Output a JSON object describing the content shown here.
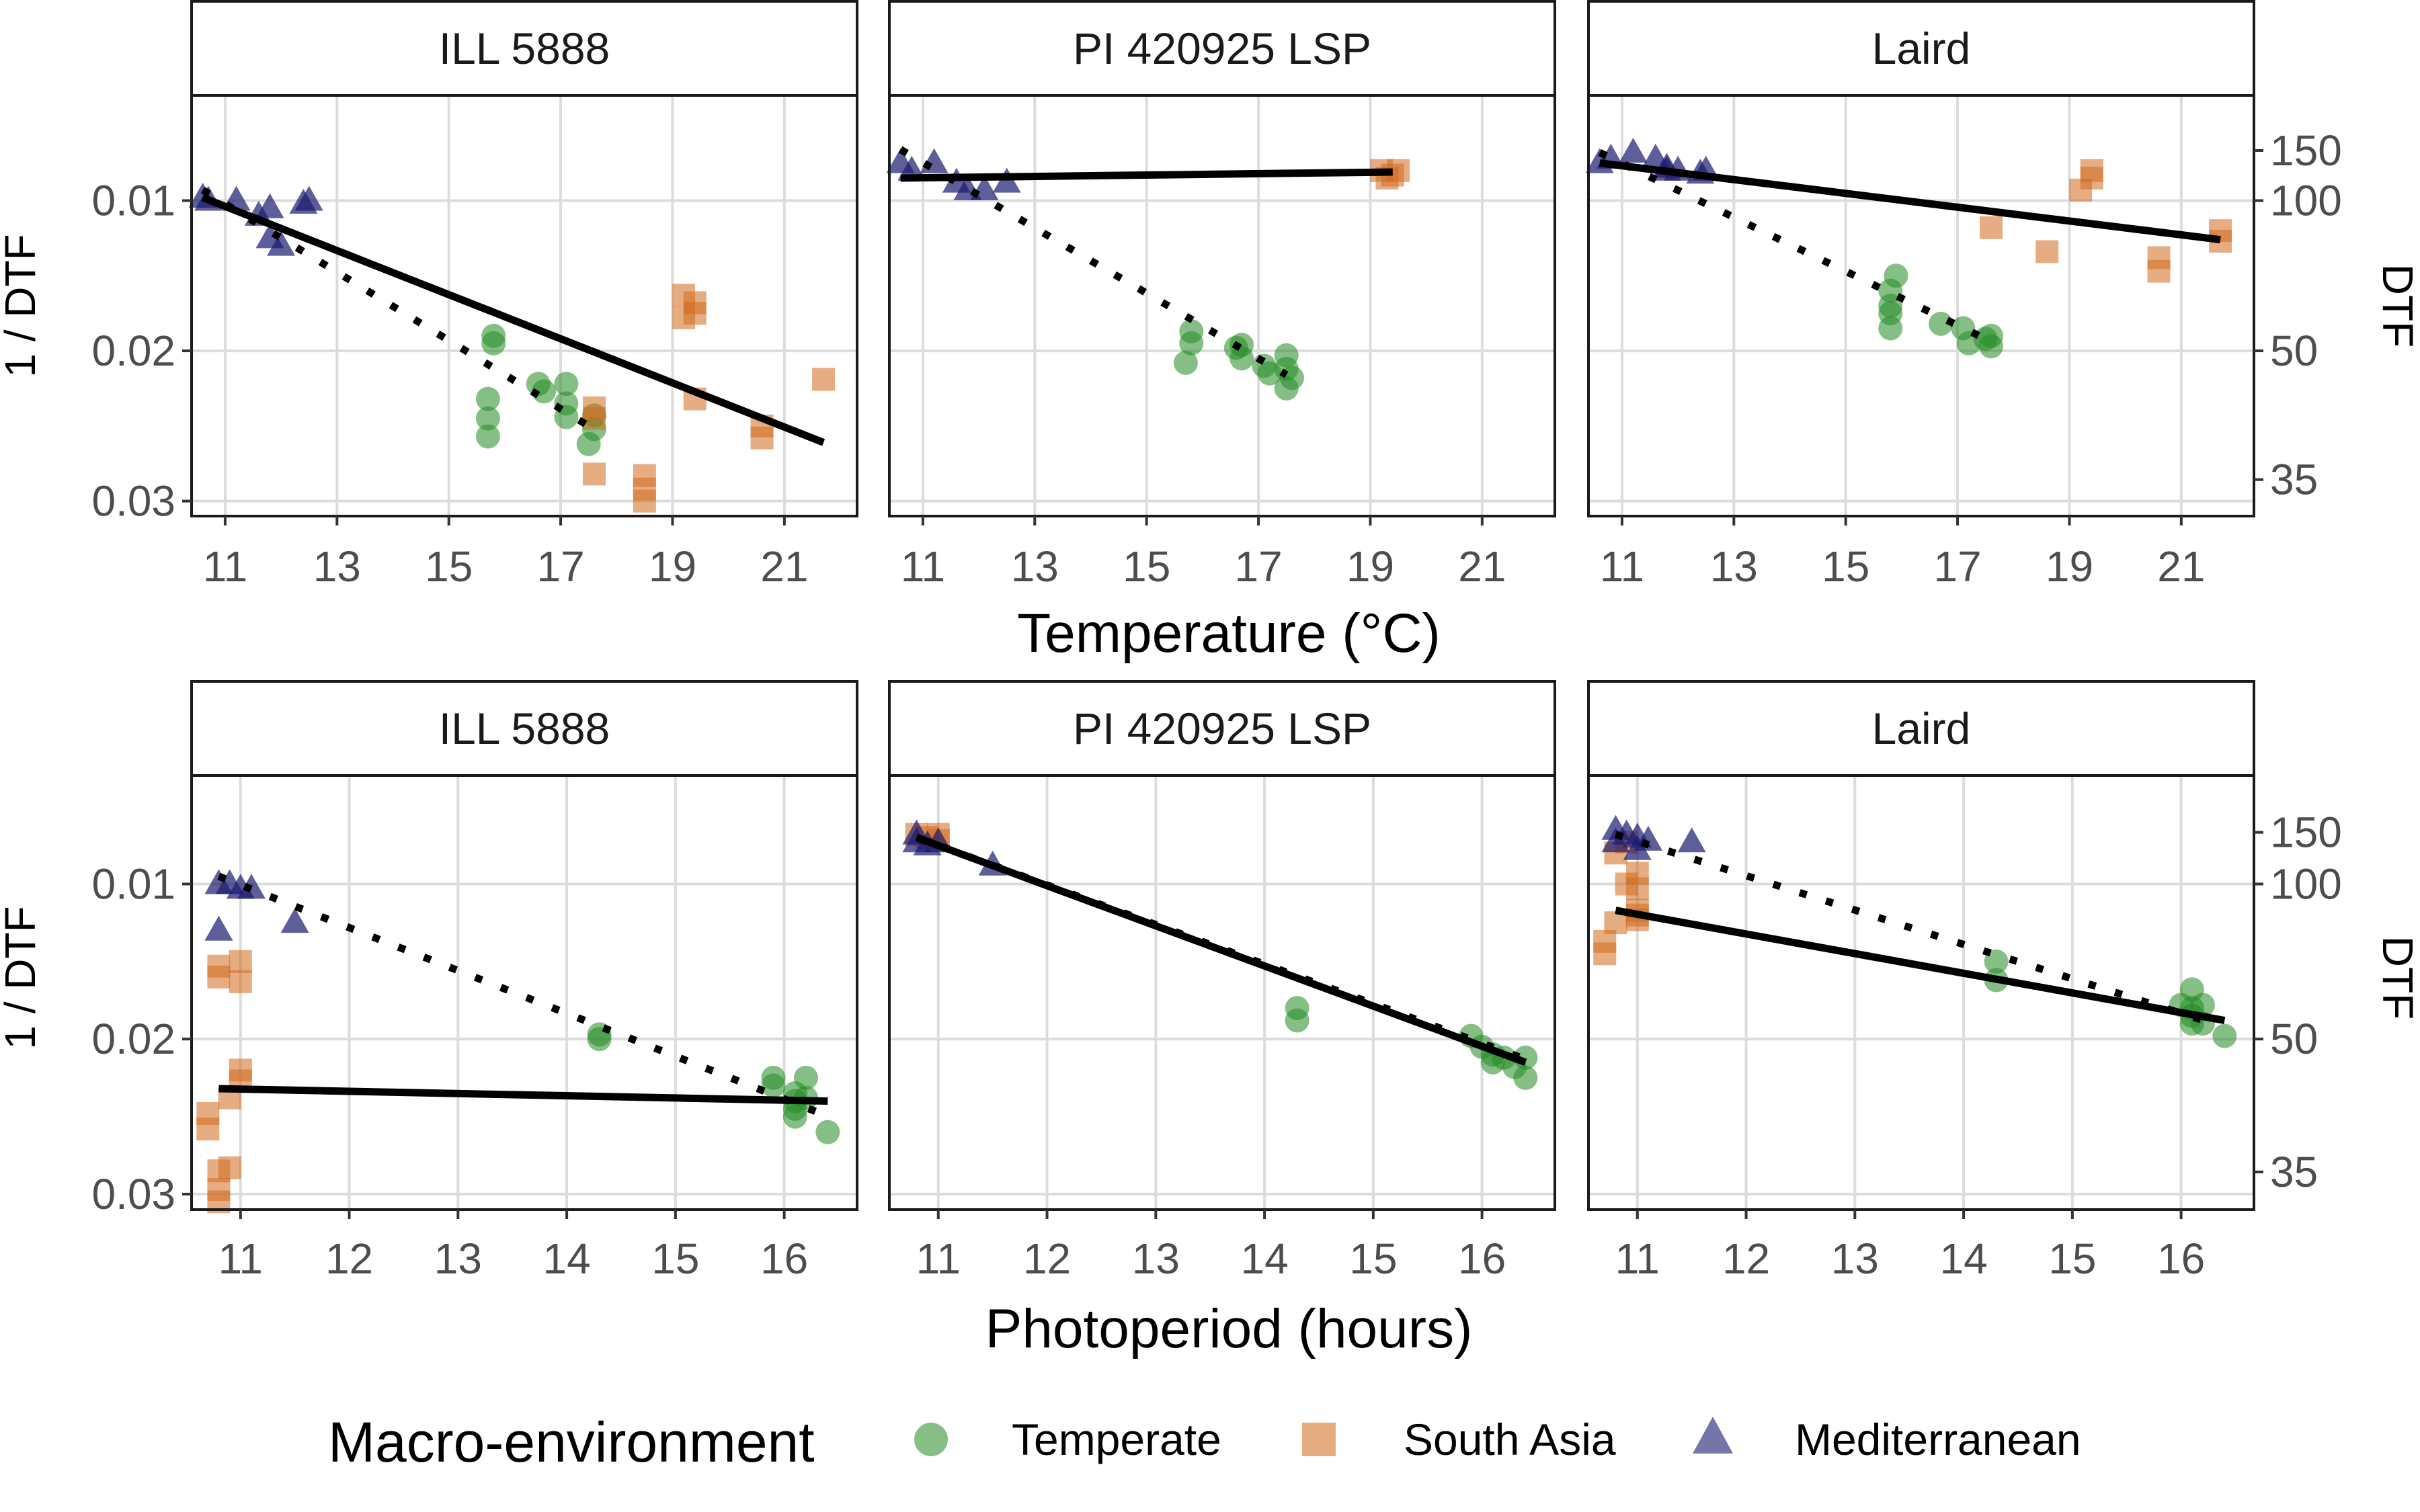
{
  "legend": {
    "title": "Macro-environment",
    "items": [
      {
        "label": "Temperate",
        "shape": "circle",
        "color": "#228B22"
      },
      {
        "label": "South Asia",
        "shape": "square",
        "color": "#D2691E"
      },
      {
        "label": "Mediterranean",
        "shape": "triangle",
        "color": "#191970"
      }
    ]
  },
  "axes": {
    "row1_xlabel": "Temperature (°C)",
    "row2_xlabel": "Photoperiod (hours)",
    "ylabel_left": "1 / DTF",
    "ylabel_right": "DTF"
  },
  "chart_data": [
    {
      "type": "scatter",
      "panel": "ILL 5888",
      "row_variable": "Temperature",
      "x_ticks": [
        11,
        13,
        15,
        17,
        19,
        21
      ],
      "xlim": [
        10.4,
        22.3
      ],
      "y_scale": "reversed reciprocal",
      "y_ticks_left": [
        0.01,
        0.02,
        0.03
      ],
      "y_ticks_right": [
        150,
        100,
        50,
        35
      ],
      "ylim": [
        0.003,
        0.031
      ],
      "series": [
        {
          "name": "Temperate",
          "points": [
            [
              15.8,
              0.0195
            ],
            [
              15.8,
              0.019
            ],
            [
              15.7,
              0.0232
            ],
            [
              15.7,
              0.0245
            ],
            [
              15.7,
              0.0257
            ],
            [
              16.6,
              0.0222
            ],
            [
              16.7,
              0.0227
            ],
            [
              17.1,
              0.0222
            ],
            [
              17.1,
              0.0235
            ],
            [
              17.1,
              0.0244
            ],
            [
              17.6,
              0.0243
            ],
            [
              17.6,
              0.0252
            ],
            [
              17.5,
              0.0262
            ]
          ]
        },
        {
          "name": "South Asia",
          "points": [
            [
              17.6,
              0.0238
            ],
            [
              17.6,
              0.0245
            ],
            [
              17.6,
              0.0282
            ],
            [
              18.5,
              0.0283
            ],
            [
              18.5,
              0.0292
            ],
            [
              18.5,
              0.03
            ],
            [
              19.2,
              0.0163
            ],
            [
              19.2,
              0.0178
            ],
            [
              19.4,
              0.0168
            ],
            [
              19.4,
              0.0175
            ],
            [
              19.4,
              0.0232
            ],
            [
              20.6,
              0.025
            ],
            [
              20.6,
              0.0258
            ],
            [
              21.7,
              0.0219
            ]
          ]
        },
        {
          "name": "Mediterranean",
          "points": [
            [
              10.6,
              0.0098
            ],
            [
              10.7,
              0.01
            ],
            [
              11.2,
              0.01
            ],
            [
              11.6,
              0.011
            ],
            [
              11.8,
              0.0105
            ],
            [
              11.8,
              0.0125
            ],
            [
              12.0,
              0.013
            ],
            [
              12.4,
              0.0102
            ],
            [
              12.5,
              0.01
            ]
          ]
        }
      ],
      "fits": [
        {
          "style": "solid",
          "x": [
            10.6,
            21.7
          ],
          "y": [
            0.0098,
            0.0261
          ]
        },
        {
          "style": "dotted",
          "x": [
            10.6,
            17.5
          ],
          "y": [
            0.0093,
            0.025
          ]
        }
      ]
    },
    {
      "type": "scatter",
      "panel": "PI 420925 LSP",
      "row_variable": "Temperature",
      "x_ticks": [
        11,
        13,
        15,
        17,
        19,
        21
      ],
      "xlim": [
        10.4,
        22.3
      ],
      "y_scale": "reversed reciprocal",
      "y_ticks_left": [
        0.01,
        0.02,
        0.03
      ],
      "y_ticks_right": [
        150,
        100,
        50,
        35
      ],
      "ylim": [
        0.003,
        0.031
      ],
      "series": [
        {
          "name": "Temperate",
          "points": [
            [
              15.7,
              0.0208
            ],
            [
              15.8,
              0.0195
            ],
            [
              15.8,
              0.0187
            ],
            [
              16.6,
              0.0198
            ],
            [
              16.7,
              0.0205
            ],
            [
              16.7,
              0.0196
            ],
            [
              17.1,
              0.021
            ],
            [
              17.2,
              0.0215
            ],
            [
              17.5,
              0.0203
            ],
            [
              17.5,
              0.0212
            ],
            [
              17.5,
              0.0225
            ],
            [
              17.6,
              0.0218
            ]
          ]
        },
        {
          "name": "South Asia",
          "points": [
            [
              19.2,
              0.008
            ],
            [
              19.3,
              0.0085
            ],
            [
              19.5,
              0.008
            ],
            [
              19.4,
              0.0083
            ]
          ]
        },
        {
          "name": "Mediterranean",
          "points": [
            [
              10.6,
              0.0075
            ],
            [
              10.8,
              0.008
            ],
            [
              11.2,
              0.0075
            ],
            [
              11.6,
              0.0088
            ],
            [
              11.8,
              0.0093
            ],
            [
              12.1,
              0.0093
            ],
            [
              12.5,
              0.0088
            ]
          ]
        }
      ],
      "fits": [
        {
          "style": "solid",
          "x": [
            10.6,
            19.4
          ],
          "y": [
            0.0085,
            0.0081
          ]
        },
        {
          "style": "dotted",
          "x": [
            10.6,
            17.5
          ],
          "y": [
            0.0066,
            0.0216
          ]
        }
      ]
    },
    {
      "type": "scatter",
      "panel": "Laird",
      "row_variable": "Temperature",
      "x_ticks": [
        11,
        13,
        15,
        17,
        19,
        21
      ],
      "xlim": [
        10.4,
        22.3
      ],
      "y_scale": "reversed reciprocal",
      "y_ticks_left": [
        0.01,
        0.02,
        0.03
      ],
      "y_ticks_right": [
        150,
        100,
        50,
        35
      ],
      "ylim": [
        0.003,
        0.031
      ],
      "series": [
        {
          "name": "Temperate",
          "points": [
            [
              15.8,
              0.016
            ],
            [
              15.8,
              0.017
            ],
            [
              15.8,
              0.0175
            ],
            [
              15.8,
              0.0185
            ],
            [
              15.9,
              0.015
            ],
            [
              16.7,
              0.0182
            ],
            [
              17.1,
              0.0185
            ],
            [
              17.2,
              0.0195
            ],
            [
              17.5,
              0.0192
            ],
            [
              17.6,
              0.0197
            ],
            [
              17.6,
              0.019
            ]
          ]
        },
        {
          "name": "South Asia",
          "points": [
            [
              17.6,
              0.0118
            ],
            [
              18.6,
              0.0134
            ],
            [
              19.2,
              0.0093
            ],
            [
              19.4,
              0.0085
            ],
            [
              19.4,
              0.008
            ],
            [
              20.6,
              0.0138
            ],
            [
              20.6,
              0.0147
            ],
            [
              21.7,
              0.012
            ],
            [
              21.7,
              0.0127
            ]
          ]
        },
        {
          "name": "Mediterranean",
          "points": [
            [
              10.6,
              0.0075
            ],
            [
              10.8,
              0.0072
            ],
            [
              11.2,
              0.0068
            ],
            [
              11.6,
              0.0072
            ],
            [
              11.8,
              0.0078
            ],
            [
              11.8,
              0.008
            ],
            [
              12.0,
              0.008
            ],
            [
              12.4,
              0.0082
            ],
            [
              12.5,
              0.008
            ]
          ]
        }
      ],
      "fits": [
        {
          "style": "solid",
          "x": [
            10.6,
            21.7
          ],
          "y": [
            0.0075,
            0.0126
          ]
        },
        {
          "style": "dotted",
          "x": [
            10.6,
            17.5
          ],
          "y": [
            0.0068,
            0.0192
          ]
        }
      ]
    },
    {
      "type": "scatter",
      "panel": "ILL 5888",
      "row_variable": "Photoperiod",
      "x_ticks": [
        11,
        12,
        13,
        14,
        15,
        16
      ],
      "xlim": [
        10.55,
        16.67
      ],
      "y_scale": "reversed reciprocal",
      "y_ticks_left": [
        0.01,
        0.02,
        0.03
      ],
      "y_ticks_right": [
        150,
        100,
        50,
        35
      ],
      "ylim": [
        0.003,
        0.031
      ],
      "series": [
        {
          "name": "Temperate",
          "points": [
            [
              14.3,
              0.02
            ],
            [
              14.3,
              0.0197
            ],
            [
              15.9,
              0.0225
            ],
            [
              15.9,
              0.023
            ],
            [
              16.1,
              0.0235
            ],
            [
              16.1,
              0.024
            ],
            [
              16.1,
              0.0245
            ],
            [
              16.1,
              0.025
            ],
            [
              16.2,
              0.0225
            ],
            [
              16.2,
              0.0238
            ],
            [
              16.4,
              0.026
            ]
          ]
        },
        {
          "name": "South Asia",
          "points": [
            [
              10.7,
              0.0248
            ],
            [
              10.7,
              0.0258
            ],
            [
              10.8,
              0.0285
            ],
            [
              10.8,
              0.0297
            ],
            [
              10.8,
              0.0305
            ],
            [
              10.8,
              0.0153
            ],
            [
              10.8,
              0.016
            ],
            [
              10.9,
              0.0283
            ],
            [
              10.9,
              0.0238
            ],
            [
              11.0,
              0.015
            ],
            [
              11.0,
              0.0163
            ],
            [
              11.0,
              0.022
            ],
            [
              11.0,
              0.0227
            ]
          ]
        },
        {
          "name": "Mediterranean",
          "points": [
            [
              10.8,
              0.01
            ],
            [
              10.8,
              0.013
            ],
            [
              10.9,
              0.01
            ],
            [
              11.0,
              0.0103
            ],
            [
              11.1,
              0.0103
            ],
            [
              11.5,
              0.0125
            ]
          ]
        }
      ],
      "fits": [
        {
          "style": "solid",
          "x": [
            10.8,
            16.4
          ],
          "y": [
            0.0232,
            0.024
          ]
        },
        {
          "style": "dotted",
          "x": [
            10.8,
            16.3
          ],
          "y": [
            0.0095,
            0.0247
          ]
        }
      ]
    },
    {
      "type": "scatter",
      "panel": "PI 420925 LSP",
      "row_variable": "Photoperiod",
      "x_ticks": [
        11,
        12,
        13,
        14,
        15,
        16
      ],
      "xlim": [
        10.55,
        16.67
      ],
      "y_scale": "reversed reciprocal",
      "y_ticks_left": [
        0.01,
        0.02,
        0.03
      ],
      "y_ticks_right": [
        150,
        100,
        50,
        35
      ],
      "ylim": [
        0.003,
        0.031
      ],
      "series": [
        {
          "name": "Temperate",
          "points": [
            [
              14.3,
              0.018
            ],
            [
              14.3,
              0.0188
            ],
            [
              15.9,
              0.0198
            ],
            [
              16.0,
              0.0205
            ],
            [
              16.1,
              0.021
            ],
            [
              16.1,
              0.0215
            ],
            [
              16.2,
              0.0212
            ],
            [
              16.3,
              0.0218
            ],
            [
              16.4,
              0.0212
            ],
            [
              16.4,
              0.0225
            ]
          ]
        },
        {
          "name": "South Asia",
          "points": [
            [
              10.8,
              0.0068
            ],
            [
              10.9,
              0.007
            ],
            [
              11.0,
              0.0068
            ],
            [
              11.0,
              0.0072
            ]
          ]
        },
        {
          "name": "Mediterranean",
          "points": [
            [
              10.8,
              0.0068
            ],
            [
              10.8,
              0.0073
            ],
            [
              10.9,
              0.0075
            ],
            [
              11.0,
              0.0073
            ],
            [
              11.5,
              0.0088
            ]
          ]
        }
      ],
      "fits": [
        {
          "style": "solid",
          "x": [
            10.8,
            16.4
          ],
          "y": [
            0.007,
            0.0215
          ]
        },
        {
          "style": "dotted",
          "x": [
            10.8,
            16.4
          ],
          "y": [
            0.007,
            0.0213
          ]
        }
      ]
    },
    {
      "type": "scatter",
      "panel": "Laird",
      "row_variable": "Photoperiod",
      "x_ticks": [
        11,
        12,
        13,
        14,
        15,
        16
      ],
      "xlim": [
        10.55,
        16.67
      ],
      "y_scale": "reversed reciprocal",
      "y_ticks_left": [
        0.01,
        0.02,
        0.03
      ],
      "y_ticks_right": [
        150,
        100,
        50,
        35
      ],
      "ylim": [
        0.003,
        0.031
      ],
      "series": [
        {
          "name": "Temperate",
          "points": [
            [
              14.3,
              0.015
            ],
            [
              14.3,
              0.0162
            ],
            [
              16.0,
              0.0178
            ],
            [
              16.1,
              0.0168
            ],
            [
              16.1,
              0.018
            ],
            [
              16.1,
              0.0185
            ],
            [
              16.1,
              0.019
            ],
            [
              16.2,
              0.0178
            ],
            [
              16.2,
              0.019
            ],
            [
              16.4,
              0.0198
            ]
          ]
        },
        {
          "name": "South Asia",
          "points": [
            [
              10.7,
              0.0145
            ],
            [
              10.7,
              0.0137
            ],
            [
              10.8,
              0.008
            ],
            [
              10.8,
              0.0125
            ],
            [
              10.9,
              0.0073
            ],
            [
              10.9,
              0.01
            ],
            [
              11.0,
              0.0117
            ],
            [
              11.0,
              0.0123
            ],
            [
              11.0,
              0.012
            ],
            [
              11.0,
              0.0093
            ],
            [
              11.0,
              0.0103
            ]
          ]
        },
        {
          "name": "Mediterranean",
          "points": [
            [
              10.8,
              0.0065
            ],
            [
              10.8,
              0.0073
            ],
            [
              10.9,
              0.0068
            ],
            [
              11.0,
              0.0078
            ],
            [
              11.0,
              0.007
            ],
            [
              11.1,
              0.0072
            ],
            [
              11.5,
              0.0073
            ]
          ]
        }
      ],
      "fits": [
        {
          "style": "solid",
          "x": [
            10.8,
            16.4
          ],
          "y": [
            0.0117,
            0.0188
          ]
        },
        {
          "style": "dotted",
          "x": [
            10.8,
            16.3
          ],
          "y": [
            0.0068,
            0.019
          ]
        }
      ]
    }
  ]
}
